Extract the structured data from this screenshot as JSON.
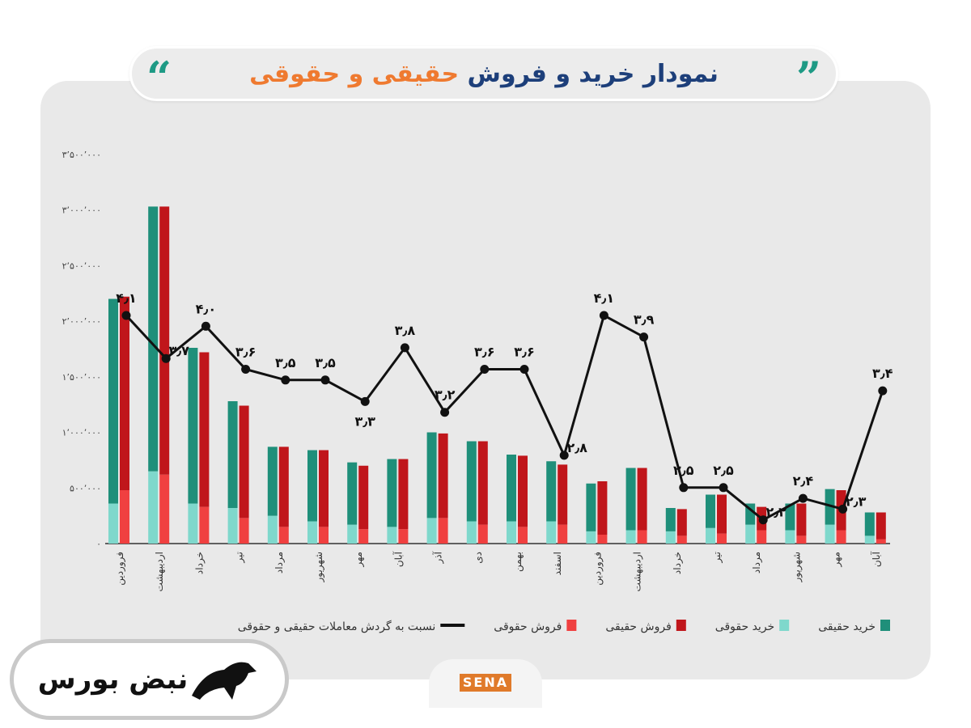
{
  "title": {
    "part1": "نمودار خرید و فروش",
    "part2": "حقیقی و حقوقی",
    "color1": "#1d3f7a",
    "color2": "#ef7a30"
  },
  "quote_left": "“",
  "quote_right": "”",
  "logo": {
    "text": "نبض بورس",
    "icon": "bull-bear-icon"
  },
  "sena_logo": "SENA",
  "chart_data": {
    "type": "bar",
    "title": "نمودار خرید و فروش حقیقی و حقوقی",
    "categories": [
      "فروردین",
      "اردیبهشت",
      "خرداد",
      "تیر",
      "مرداد",
      "شهریور",
      "مهر",
      "آبان",
      "آذر",
      "دی",
      "بهمن",
      "اسفند",
      "فروردین",
      "اردیبهشت",
      "خرداد",
      "تیر",
      "مرداد",
      "شهریور",
      "مهر",
      "آبان"
    ],
    "ylim": [
      0,
      3500000
    ],
    "yticks": [
      0,
      500000,
      1000000,
      1500000,
      2000000,
      2500000,
      3000000,
      3500000
    ],
    "ytick_labels": [
      "۰",
      "۵۰۰٬۰۰۰",
      "۱٬۰۰۰٬۰۰۰",
      "۱٬۵۰۰٬۰۰۰",
      "۲٬۰۰۰٬۰۰۰",
      "۲٬۵۰۰٬۰۰۰",
      "۳٬۰۰۰٬۰۰۰",
      "۳٬۵۰۰٬۰۰۰"
    ],
    "grid": false,
    "legend_placement": "bottom",
    "series": [
      {
        "name": "خرید حقیقی",
        "color": "#1f8f7a",
        "stack": "buy",
        "values": [
          1840000,
          2380000,
          1400000,
          960000,
          620000,
          640000,
          560000,
          610000,
          770000,
          720000,
          600000,
          540000,
          430000,
          560000,
          210000,
          300000,
          190000,
          240000,
          320000,
          210000
        ]
      },
      {
        "name": "خرید حقوقی",
        "color": "#7fd8cc",
        "stack": "buy",
        "values": [
          360000,
          650000,
          360000,
          320000,
          250000,
          200000,
          170000,
          150000,
          230000,
          200000,
          200000,
          200000,
          110000,
          120000,
          110000,
          140000,
          170000,
          120000,
          170000,
          70000
        ]
      },
      {
        "name": "فروش حقیقی",
        "color": "#c0161b",
        "stack": "sell",
        "values": [
          1740000,
          2410000,
          1390000,
          1010000,
          720000,
          690000,
          570000,
          630000,
          760000,
          750000,
          640000,
          540000,
          480000,
          560000,
          240000,
          350000,
          210000,
          290000,
          360000,
          240000
        ]
      },
      {
        "name": "فروش حقوقی",
        "color": "#f04040",
        "stack": "sell",
        "values": [
          480000,
          620000,
          330000,
          230000,
          150000,
          150000,
          130000,
          130000,
          230000,
          170000,
          150000,
          170000,
          80000,
          120000,
          70000,
          90000,
          120000,
          70000,
          120000,
          40000
        ]
      },
      {
        "name": "نسبت به گردش معاملات حقیقی و حقوقی",
        "type": "line",
        "color": "#111111",
        "values": [
          4.1,
          3.7,
          4.0,
          3.6,
          3.5,
          3.5,
          3.3,
          3.8,
          3.2,
          3.6,
          3.6,
          2.8,
          4.1,
          3.9,
          2.5,
          2.5,
          2.2,
          2.4,
          2.3,
          3.4
        ],
        "labels": [
          "۴٫۱",
          "۳٫۷",
          "۴٫۰",
          "۳٫۶",
          "۳٫۵",
          "۳٫۵",
          "۳٫۳",
          "۳٫۸",
          "۳٫۲",
          "۳٫۶",
          "۳٫۶",
          "۲٫۸",
          "۴٫۱",
          "۳٫۹",
          "۲٫۵",
          "۲٫۵",
          "۲٫۲",
          "۲٫۴",
          "۲٫۳",
          "۳٫۴"
        ]
      }
    ]
  }
}
